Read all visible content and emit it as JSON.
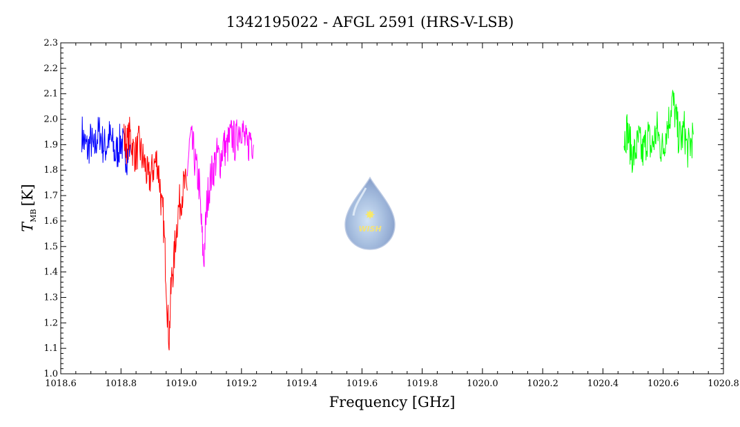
{
  "chart_data": {
    "type": "line",
    "title": "1342195022 - AFGL 2591 (HRS-V-LSB)",
    "xlabel": "Frequency [GHz]",
    "ylabel": "T",
    "ylabel_sub": "MB",
    "ylabel_unit": "[K]",
    "xlim": [
      1018.6,
      1020.8
    ],
    "ylim": [
      1.0,
      2.3
    ],
    "xticks": [
      1018.6,
      1018.8,
      1019.0,
      1019.2,
      1019.4,
      1019.6,
      1019.8,
      1020.0,
      1020.2,
      1020.4,
      1020.6,
      1020.8
    ],
    "xtick_labels": [
      "1018.6",
      "1018.8",
      "1019.0",
      "1019.2",
      "1019.4",
      "1019.6",
      "1019.8",
      "1020.0",
      "1020.2",
      "1020.4",
      "1020.6",
      "1020.8"
    ],
    "yticks": [
      1.0,
      1.1,
      1.2,
      1.3,
      1.4,
      1.5,
      1.6,
      1.7,
      1.8,
      1.9,
      2.0,
      2.1,
      2.2,
      2.3
    ],
    "ytick_labels": [
      "1.0",
      "1.1",
      "1.2",
      "1.3",
      "1.4",
      "1.5",
      "1.6",
      "1.7",
      "1.8",
      "1.9",
      "2.0",
      "2.1",
      "2.2",
      "2.3"
    ],
    "grid": false,
    "series": [
      {
        "color": "#0000ff",
        "x": [
          1018.67,
          1018.68,
          1018.69,
          1018.7,
          1018.71,
          1018.72,
          1018.73,
          1018.74,
          1018.75,
          1018.76,
          1018.77,
          1018.78,
          1018.79,
          1018.8,
          1018.81,
          1018.82,
          1018.83
        ],
        "y": [
          1.95,
          1.9,
          1.88,
          1.92,
          1.87,
          1.93,
          1.95,
          1.9,
          1.89,
          1.93,
          1.91,
          1.86,
          1.88,
          1.92,
          1.88,
          1.86,
          1.9
        ]
      },
      {
        "color": "#ff0000",
        "x": [
          1018.81,
          1018.82,
          1018.83,
          1018.84,
          1018.85,
          1018.86,
          1018.87,
          1018.88,
          1018.89,
          1018.9,
          1018.91,
          1018.92,
          1018.93,
          1018.935,
          1018.94,
          1018.945,
          1018.95,
          1018.955,
          1018.96,
          1018.965,
          1018.97,
          1018.975,
          1018.98,
          1018.99,
          1019.0,
          1019.01,
          1019.02
        ],
        "y": [
          1.92,
          1.9,
          1.94,
          1.88,
          1.86,
          1.9,
          1.85,
          1.82,
          1.76,
          1.78,
          1.82,
          1.84,
          1.74,
          1.64,
          1.62,
          1.5,
          1.38,
          1.22,
          1.14,
          1.3,
          1.4,
          1.42,
          1.52,
          1.64,
          1.7,
          1.74,
          1.72
        ]
      },
      {
        "color": "#ff00ff",
        "x": [
          1019.02,
          1019.03,
          1019.04,
          1019.05,
          1019.06,
          1019.065,
          1019.07,
          1019.075,
          1019.08,
          1019.085,
          1019.09,
          1019.1,
          1019.11,
          1019.12,
          1019.13,
          1019.14,
          1019.15,
          1019.16,
          1019.17,
          1019.18,
          1019.19,
          1019.2,
          1019.21,
          1019.22,
          1019.23,
          1019.24
        ],
        "y": [
          1.8,
          1.92,
          1.88,
          1.8,
          1.74,
          1.62,
          1.52,
          1.44,
          1.56,
          1.66,
          1.72,
          1.78,
          1.82,
          1.86,
          1.84,
          1.9,
          1.88,
          1.92,
          1.94,
          1.9,
          1.96,
          1.98,
          1.92,
          1.88,
          1.94,
          1.9
        ]
      },
      {
        "color": "#00ff00",
        "x": [
          1020.47,
          1020.48,
          1020.49,
          1020.5,
          1020.51,
          1020.52,
          1020.53,
          1020.54,
          1020.55,
          1020.56,
          1020.57,
          1020.58,
          1020.59,
          1020.6,
          1020.61,
          1020.62,
          1020.63,
          1020.64,
          1020.65,
          1020.66,
          1020.67,
          1020.68,
          1020.69,
          1020.7
        ],
        "y": [
          1.92,
          1.96,
          1.9,
          1.85,
          1.88,
          1.92,
          1.86,
          1.9,
          1.94,
          1.88,
          1.92,
          1.96,
          1.9,
          1.88,
          1.96,
          2.0,
          2.08,
          2.02,
          1.94,
          1.92,
          1.96,
          1.88,
          1.9,
          1.94
        ]
      }
    ]
  }
}
